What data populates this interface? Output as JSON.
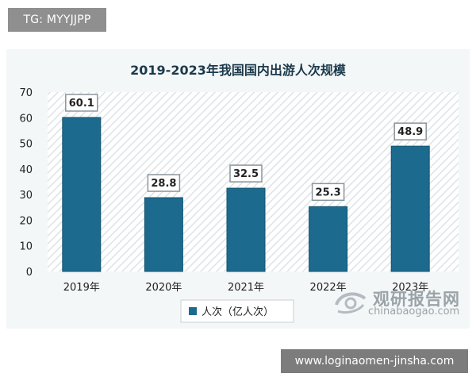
{
  "top_tag": "TG: MYYJJPP",
  "bottom_tag": "www.loginaomen-jinsha.com",
  "watermark": {
    "cn": "观研报告网",
    "en": "chinabaogao.com"
  },
  "chart_data": {
    "type": "bar",
    "title": "2019-2023年我国国内出游人次规模",
    "categories": [
      "2019年",
      "2020年",
      "2021年",
      "2022年",
      "2023年"
    ],
    "series": [
      {
        "name": "人次（亿人次）",
        "values": [
          60.1,
          28.8,
          32.5,
          25.3,
          48.9
        ]
      }
    ],
    "data_labels": [
      "60.1",
      "28.8",
      "32.5",
      "25.3",
      "48.9"
    ],
    "yticks": [
      "0",
      "10",
      "20",
      "30",
      "40",
      "50",
      "60",
      "70"
    ],
    "ylim": [
      0,
      70
    ],
    "xlabel": "",
    "ylabel": "",
    "grid": false,
    "legend_position": "bottom",
    "colors": {
      "bar": "#1d6a8f",
      "bar_edge": "#13546f",
      "title": "#1b3a4b",
      "frame": "#f4f7f8",
      "hatch": "#dde3e6"
    }
  }
}
